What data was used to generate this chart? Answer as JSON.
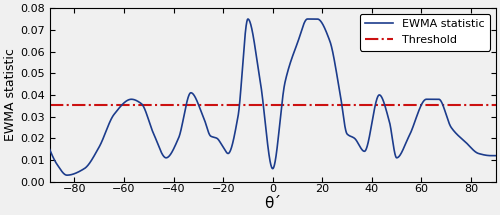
{
  "xlim": [
    -90,
    90
  ],
  "ylim": [
    0,
    0.08
  ],
  "xticks": [
    -80,
    -60,
    -40,
    -20,
    0,
    20,
    40,
    60,
    80
  ],
  "yticks": [
    0,
    0.01,
    0.02,
    0.03,
    0.04,
    0.05,
    0.06,
    0.07,
    0.08
  ],
  "xlabel": "θ´",
  "ylabel": "EWMA statistic",
  "threshold": 0.0355,
  "line_color": "#1c3c8c",
  "threshold_color": "#cc1111",
  "legend_labels": [
    "EWMA statistic",
    "Threshold"
  ],
  "figsize": [
    5.0,
    2.15
  ],
  "dpi": 100,
  "key_points": {
    "theta": [
      -90,
      -83,
      -57,
      -43,
      -33,
      -25,
      -22,
      -18,
      -10,
      0,
      18,
      28,
      33,
      43,
      50,
      62,
      75,
      90
    ],
    "val": [
      0.015,
      0.003,
      0.038,
      0.011,
      0.041,
      0.021,
      0.02,
      0.013,
      0.075,
      0.006,
      0.075,
      0.019,
      0.014,
      0.04,
      0.011,
      0.038,
      0.018,
      0.012
    ]
  }
}
